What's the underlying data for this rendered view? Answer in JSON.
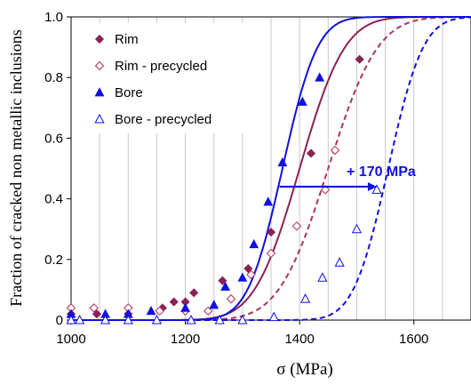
{
  "chart_data": {
    "type": "scatter",
    "title": "",
    "xlabel": "σ (MPa)",
    "ylabel": "Fraction of cracked non metallic inclusions",
    "xlim": [
      1000,
      1700
    ],
    "ylim": [
      0,
      1.0
    ],
    "x_ticks": [
      "1000",
      "1200",
      "1400",
      "1600"
    ],
    "y_ticks": [
      "0",
      "0.2",
      "0.4",
      "0.6",
      "0.8",
      "1.0"
    ],
    "grid": "vertical",
    "legend_position": "top-left",
    "annotation": {
      "text": "+ 170 MPa",
      "arrow_from": [
        1365,
        0.44
      ],
      "arrow_to": [
        1535,
        0.44
      ]
    },
    "series": [
      {
        "name": "Rim",
        "marker": "diamond-filled",
        "color": "#8b2252",
        "points": [
          [
            1000,
            0.02
          ],
          [
            1045,
            0.02
          ],
          [
            1100,
            0.02
          ],
          [
            1160,
            0.04
          ],
          [
            1180,
            0.06
          ],
          [
            1200,
            0.06
          ],
          [
            1215,
            0.09
          ],
          [
            1265,
            0.13
          ],
          [
            1310,
            0.17
          ],
          [
            1350,
            0.29
          ],
          [
            1420,
            0.55
          ],
          [
            1505,
            0.86
          ]
        ],
        "fit": {
          "type": "normal_cdf",
          "mu": 1400,
          "sigma": 62,
          "line": "solid"
        }
      },
      {
        "name": "Rim - precycled",
        "marker": "diamond-open",
        "color": "#b03060",
        "points": [
          [
            1000,
            0.04
          ],
          [
            1040,
            0.04
          ],
          [
            1100,
            0.04
          ],
          [
            1155,
            0.03
          ],
          [
            1200,
            0.03
          ],
          [
            1240,
            0.03
          ],
          [
            1280,
            0.07
          ],
          [
            1315,
            0.15
          ],
          [
            1350,
            0.22
          ],
          [
            1395,
            0.31
          ],
          [
            1445,
            0.43
          ],
          [
            1462,
            0.56
          ]
        ],
        "fit": {
          "type": "normal_cdf",
          "mu": 1450,
          "sigma": 68,
          "line": "dashed"
        }
      },
      {
        "name": "Bore",
        "marker": "triangle-filled",
        "color": "#1010e0",
        "points": [
          [
            1000,
            0.02
          ],
          [
            1060,
            0.02
          ],
          [
            1100,
            0.02
          ],
          [
            1140,
            0.03
          ],
          [
            1200,
            0.04
          ],
          [
            1250,
            0.05
          ],
          [
            1270,
            0.11
          ],
          [
            1300,
            0.14
          ],
          [
            1320,
            0.25
          ],
          [
            1345,
            0.39
          ],
          [
            1370,
            0.52
          ],
          [
            1405,
            0.72
          ],
          [
            1435,
            0.8
          ]
        ],
        "fit": {
          "type": "normal_cdf",
          "mu": 1370,
          "sigma": 48,
          "line": "solid"
        }
      },
      {
        "name": "Bore - precycled",
        "marker": "triangle-open",
        "color": "#1010e0",
        "points": [
          [
            1000,
            0.0
          ],
          [
            1015,
            0.0
          ],
          [
            1060,
            0.0
          ],
          [
            1100,
            0.0
          ],
          [
            1150,
            0.0
          ],
          [
            1210,
            0.0
          ],
          [
            1260,
            0.0
          ],
          [
            1300,
            0.0
          ],
          [
            1355,
            0.01
          ],
          [
            1410,
            0.07
          ],
          [
            1440,
            0.14
          ],
          [
            1470,
            0.19
          ],
          [
            1500,
            0.3
          ],
          [
            1535,
            0.43
          ]
        ],
        "fit": {
          "type": "normal_cdf",
          "mu": 1555,
          "sigma": 48,
          "line": "dashed"
        }
      }
    ]
  }
}
